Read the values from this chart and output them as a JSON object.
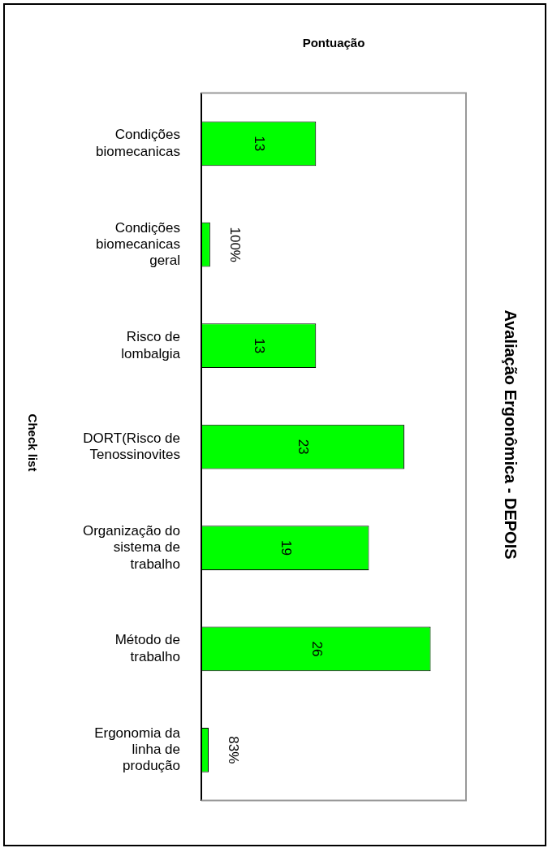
{
  "chart_data": {
    "type": "bar",
    "orientation": "horizontal",
    "title": "Avaliação Ergonômica - DEPOIS",
    "xlabel": "Pontuação",
    "ylabel": "Check list",
    "categories": [
      "Condições biomecanicas",
      "Condições biomecanicas geral",
      "Risco de lombalgia",
      "DORT(Risco de Tenossinovites",
      "Organização do sistema de trabalho",
      "Método de trabalho",
      "Ergonomia da linha de produção"
    ],
    "values": [
      13,
      1,
      13,
      23,
      19,
      26,
      0.83
    ],
    "value_labels": [
      "13",
      "100%",
      "13",
      "23",
      "19",
      "26",
      "83%"
    ],
    "color": "#00ff00",
    "grid": false,
    "legend": false,
    "tick_labels": "y"
  }
}
